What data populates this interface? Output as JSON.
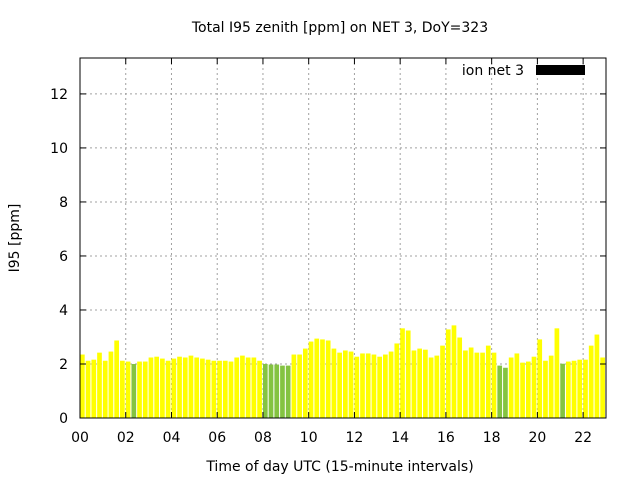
{
  "chart_data": {
    "type": "bar",
    "title": "Total I95 zenith [ppm] on NET 3, DoY=323",
    "xlabel": "Time of day UTC (15-minute intervals)",
    "ylabel": "I95 [ppm]",
    "xlim": [
      0,
      23
    ],
    "ylim": [
      0,
      13.33
    ],
    "grid": true,
    "legend": {
      "label": "ion net 3",
      "color": "#000000",
      "placement": "top-right"
    },
    "x_ticks": [
      0,
      2,
      4,
      6,
      8,
      10,
      12,
      14,
      16,
      18,
      20,
      22
    ],
    "x_tick_labels": [
      "00",
      "02",
      "04",
      "06",
      "08",
      "10",
      "12",
      "14",
      "16",
      "18",
      "20",
      "22"
    ],
    "y_ticks": [
      0,
      2,
      4,
      6,
      8,
      10,
      12
    ],
    "y_tick_labels": [
      "0",
      "2",
      "4",
      "6",
      "8",
      "10",
      "12"
    ],
    "interval_hours": 0.25,
    "colors": {
      "normal": "#ffff00",
      "low": "#84c341"
    },
    "low_threshold": 2.02,
    "values": [
      2.35,
      2.12,
      2.16,
      2.42,
      2.12,
      2.46,
      2.87,
      2.12,
      2.09,
      2.0,
      2.09,
      2.09,
      2.24,
      2.27,
      2.2,
      2.12,
      2.2,
      2.27,
      2.24,
      2.31,
      2.24,
      2.2,
      2.16,
      2.12,
      2.12,
      2.12,
      2.09,
      2.24,
      2.31,
      2.24,
      2.24,
      2.12,
      2.0,
      1.98,
      1.98,
      1.94,
      1.94,
      2.35,
      2.35,
      2.57,
      2.83,
      2.94,
      2.91,
      2.87,
      2.57,
      2.42,
      2.5,
      2.46,
      2.27,
      2.39,
      2.39,
      2.35,
      2.27,
      2.35,
      2.46,
      2.76,
      3.32,
      3.24,
      2.5,
      2.57,
      2.53,
      2.24,
      2.31,
      2.68,
      3.28,
      3.43,
      2.98,
      2.5,
      2.61,
      2.42,
      2.42,
      2.68,
      2.42,
      1.94,
      1.86,
      2.24,
      2.39,
      2.05,
      2.09,
      2.27,
      2.91,
      2.12,
      2.31,
      3.32,
      2.01,
      2.09,
      2.12,
      2.16,
      2.16,
      2.68,
      3.09,
      2.24
    ]
  }
}
